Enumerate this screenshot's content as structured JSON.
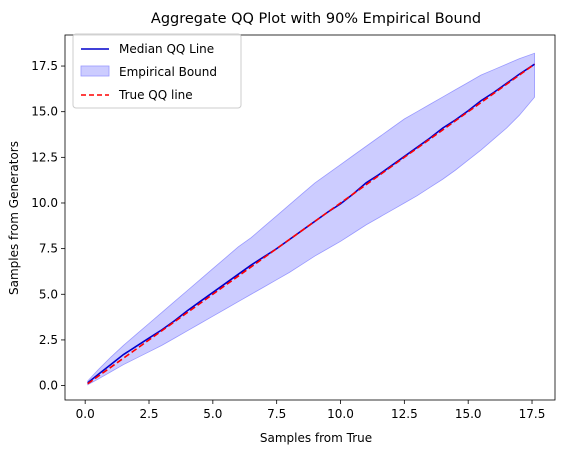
{
  "chart_data": {
    "type": "line",
    "title": "Aggregate QQ Plot with 90% Empirical Bound",
    "xlabel": "Samples from True",
    "ylabel": "Samples from Generators",
    "xlim": [
      -0.79,
      18.4
    ],
    "ylim": [
      -0.79,
      19.2
    ],
    "xticks": [
      0.0,
      2.5,
      5.0,
      7.5,
      10.0,
      12.5,
      15.0,
      17.5
    ],
    "xtick_labels": [
      "0.0",
      "2.5",
      "5.0",
      "7.5",
      "10.0",
      "12.5",
      "15.0",
      "17.5"
    ],
    "yticks": [
      0.0,
      2.5,
      5.0,
      7.5,
      10.0,
      12.5,
      15.0,
      17.5
    ],
    "ytick_labels": [
      "0.0",
      "2.5",
      "5.0",
      "7.5",
      "10.0",
      "12.5",
      "15.0",
      "17.5"
    ],
    "grid": false,
    "legend_position": "top-left",
    "series": [
      {
        "name": "Median QQ Line",
        "kind": "line",
        "color": "#0000cc",
        "x": [
          0.1,
          0.5,
          1.0,
          1.5,
          2.0,
          2.5,
          3.0,
          3.5,
          4.0,
          4.5,
          5.0,
          5.5,
          6.0,
          6.5,
          7.0,
          7.5,
          8.0,
          8.5,
          9.0,
          9.5,
          10.0,
          10.5,
          11.0,
          11.5,
          12.0,
          12.5,
          13.0,
          13.5,
          14.0,
          14.5,
          15.0,
          15.5,
          16.0,
          16.5,
          17.0,
          17.6
        ],
        "y": [
          0.15,
          0.6,
          1.15,
          1.7,
          2.15,
          2.6,
          3.05,
          3.55,
          4.1,
          4.6,
          5.1,
          5.6,
          6.1,
          6.6,
          7.05,
          7.5,
          8.0,
          8.5,
          9.0,
          9.5,
          9.95,
          10.5,
          11.1,
          11.55,
          12.05,
          12.55,
          13.05,
          13.55,
          14.1,
          14.55,
          15.05,
          15.6,
          16.05,
          16.55,
          17.05,
          17.6
        ]
      },
      {
        "name": "Empirical Bound",
        "kind": "band",
        "color": "#0000ff",
        "opacity": 0.2,
        "x": [
          0.1,
          0.5,
          1.0,
          1.5,
          2.0,
          2.5,
          3.0,
          3.5,
          4.0,
          4.5,
          5.0,
          5.5,
          6.0,
          6.5,
          7.0,
          7.5,
          8.0,
          8.5,
          9.0,
          9.5,
          10.0,
          10.5,
          11.0,
          11.5,
          12.0,
          12.5,
          13.0,
          13.5,
          14.0,
          14.5,
          15.0,
          15.5,
          16.0,
          16.5,
          17.0,
          17.6
        ],
        "upper": [
          0.25,
          0.85,
          1.55,
          2.2,
          2.8,
          3.4,
          4.0,
          4.6,
          5.2,
          5.8,
          6.4,
          7.0,
          7.6,
          8.1,
          8.7,
          9.3,
          9.9,
          10.5,
          11.1,
          11.6,
          12.1,
          12.6,
          13.1,
          13.6,
          14.1,
          14.6,
          15.0,
          15.4,
          15.8,
          16.2,
          16.6,
          17.0,
          17.3,
          17.6,
          17.9,
          18.2
        ],
        "lower": [
          0.05,
          0.35,
          0.75,
          1.15,
          1.5,
          1.85,
          2.2,
          2.6,
          3.0,
          3.4,
          3.8,
          4.2,
          4.6,
          5.0,
          5.4,
          5.8,
          6.2,
          6.65,
          7.1,
          7.5,
          7.9,
          8.35,
          8.8,
          9.2,
          9.6,
          10.0,
          10.4,
          10.85,
          11.3,
          11.8,
          12.35,
          12.9,
          13.5,
          14.1,
          14.8,
          15.8
        ]
      },
      {
        "name": "True QQ line",
        "kind": "dashed-line",
        "color": "#ff0000",
        "x": [
          0.1,
          17.6
        ],
        "y": [
          0.1,
          17.6
        ]
      }
    ]
  },
  "colors": {
    "median": "#0000cc",
    "band_fill": "#ccccff",
    "band_edge": "#9999ff",
    "true_line": "#ff0000",
    "axes": "#000000"
  }
}
